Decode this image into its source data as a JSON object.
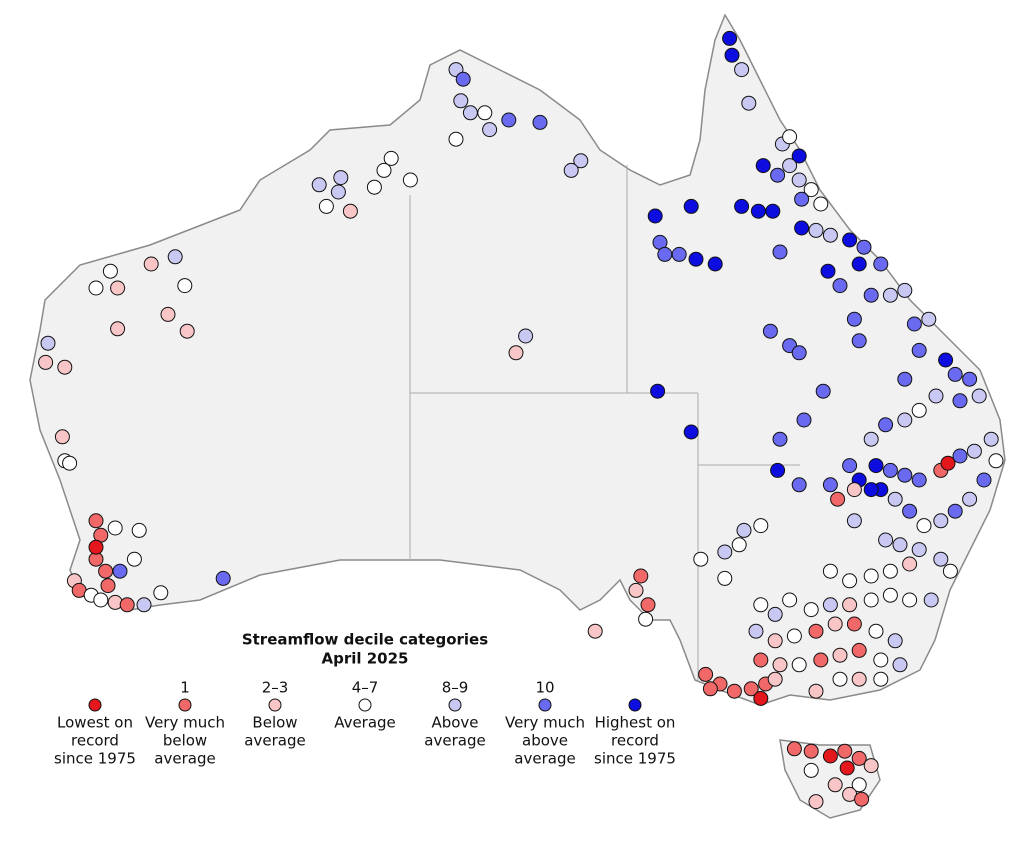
{
  "legend": {
    "title": "Streamflow decile categories",
    "subtitle": "April 2025",
    "items": [
      {
        "lines": [
          "Lowest on",
          "record",
          "since 1975"
        ],
        "color": "#e3171c"
      },
      {
        "decile": "1",
        "lines": [
          "Very much",
          "below",
          "average"
        ],
        "color": "#f06868"
      },
      {
        "decile": "2–3",
        "lines": [
          "Below",
          "average"
        ],
        "color": "#f8c6c6"
      },
      {
        "decile": "4–7",
        "lines": [
          "Average"
        ],
        "color": "#ffffff"
      },
      {
        "decile": "8–9",
        "lines": [
          "Above",
          "average"
        ],
        "color": "#c8c8f2"
      },
      {
        "decile": "10",
        "lines": [
          "Very much",
          "above",
          "average"
        ],
        "color": "#6a6af0"
      },
      {
        "lines": [
          "Highest on",
          "record",
          "since 1975"
        ],
        "color": "#0d0de0"
      }
    ]
  },
  "map": {
    "stations": [
      [
        131.0,
        -12.9,
        4
      ],
      [
        131.3,
        -13.3,
        5
      ],
      [
        131.2,
        -14.2,
        4
      ],
      [
        131.6,
        -14.7,
        4
      ],
      [
        132.2,
        -14.7,
        3
      ],
      [
        132.4,
        -15.4,
        4
      ],
      [
        133.2,
        -15.0,
        5
      ],
      [
        134.5,
        -15.1,
        5
      ],
      [
        131.0,
        -15.8,
        3
      ],
      [
        136.2,
        -16.7,
        4
      ],
      [
        135.8,
        -17.1,
        4
      ],
      [
        128.3,
        -16.6,
        3
      ],
      [
        128.0,
        -17.1,
        3
      ],
      [
        127.6,
        -17.8,
        3
      ],
      [
        129.1,
        -17.5,
        3
      ],
      [
        125.3,
        -17.7,
        4
      ],
      [
        126.1,
        -18.0,
        4
      ],
      [
        126.2,
        -17.4,
        4
      ],
      [
        125.6,
        -18.6,
        3
      ],
      [
        126.6,
        -18.8,
        2
      ],
      [
        116.6,
        -21.3,
        3
      ],
      [
        118.3,
        -21.0,
        2
      ],
      [
        119.3,
        -20.7,
        4
      ],
      [
        119.7,
        -21.9,
        3
      ],
      [
        116.0,
        -22.0,
        3
      ],
      [
        116.9,
        -22.0,
        2
      ],
      [
        119.0,
        -23.1,
        2
      ],
      [
        119.8,
        -23.8,
        2
      ],
      [
        116.9,
        -23.7,
        2
      ],
      [
        114.0,
        -24.3,
        4
      ],
      [
        113.9,
        -25.1,
        2
      ],
      [
        114.7,
        -25.3,
        2
      ],
      [
        114.6,
        -28.2,
        2
      ],
      [
        114.7,
        -29.2,
        3
      ],
      [
        114.9,
        -29.3,
        3
      ],
      [
        133.5,
        -24.7,
        2
      ],
      [
        133.9,
        -24.0,
        4
      ],
      [
        116.0,
        -31.7,
        1
      ],
      [
        116.2,
        -32.3,
        1
      ],
      [
        116.8,
        -32.0,
        3
      ],
      [
        117.8,
        -32.1,
        3
      ],
      [
        116.0,
        -33.3,
        1
      ],
      [
        116.4,
        -33.8,
        1
      ],
      [
        117.0,
        -33.8,
        5
      ],
      [
        117.6,
        -33.3,
        3
      ],
      [
        115.1,
        -34.2,
        2
      ],
      [
        115.3,
        -34.6,
        1
      ],
      [
        115.8,
        -34.8,
        3
      ],
      [
        116.2,
        -35.0,
        3
      ],
      [
        116.8,
        -35.1,
        2
      ],
      [
        117.3,
        -35.2,
        1
      ],
      [
        118.0,
        -35.2,
        4
      ],
      [
        118.7,
        -34.7,
        3
      ],
      [
        116.5,
        -34.4,
        1
      ],
      [
        116.0,
        -32.8,
        0
      ],
      [
        121.3,
        -34.1,
        5
      ],
      [
        138.7,
        -34.0,
        1
      ],
      [
        138.5,
        -34.6,
        2
      ],
      [
        139.0,
        -35.2,
        1
      ],
      [
        138.9,
        -35.8,
        3
      ],
      [
        136.8,
        -36.3,
        2
      ],
      [
        142.4,
        -11.6,
        6
      ],
      [
        142.5,
        -12.3,
        6
      ],
      [
        142.9,
        -12.9,
        4
      ],
      [
        143.2,
        -14.3,
        4
      ],
      [
        144.6,
        -16.0,
        4
      ],
      [
        144.9,
        -15.7,
        3
      ],
      [
        145.3,
        -16.5,
        6
      ],
      [
        143.8,
        -16.9,
        6
      ],
      [
        144.4,
        -17.3,
        5
      ],
      [
        144.9,
        -16.9,
        4
      ],
      [
        145.3,
        -17.5,
        4
      ],
      [
        145.8,
        -17.9,
        3
      ],
      [
        145.4,
        -18.3,
        5
      ],
      [
        146.2,
        -18.5,
        3
      ],
      [
        142.9,
        -18.6,
        6
      ],
      [
        143.6,
        -18.8,
        6
      ],
      [
        144.2,
        -18.8,
        6
      ],
      [
        140.8,
        -18.6,
        6
      ],
      [
        139.3,
        -19.0,
        6
      ],
      [
        139.5,
        -20.1,
        5
      ],
      [
        139.7,
        -20.6,
        5
      ],
      [
        140.3,
        -20.6,
        5
      ],
      [
        141.0,
        -20.8,
        6
      ],
      [
        141.8,
        -21.0,
        6
      ],
      [
        144.5,
        -20.5,
        5
      ],
      [
        145.4,
        -19.5,
        6
      ],
      [
        146.0,
        -19.6,
        4
      ],
      [
        146.6,
        -19.8,
        4
      ],
      [
        147.4,
        -20.0,
        6
      ],
      [
        148.0,
        -20.3,
        5
      ],
      [
        147.8,
        -21.0,
        6
      ],
      [
        148.7,
        -21.0,
        5
      ],
      [
        146.5,
        -21.3,
        6
      ],
      [
        147.0,
        -21.9,
        5
      ],
      [
        148.3,
        -22.3,
        5
      ],
      [
        149.1,
        -22.3,
        4
      ],
      [
        149.7,
        -22.1,
        4
      ],
      [
        144.1,
        -23.8,
        5
      ],
      [
        144.9,
        -24.4,
        5
      ],
      [
        145.3,
        -24.7,
        5
      ],
      [
        147.6,
        -23.3,
        5
      ],
      [
        147.8,
        -24.2,
        5
      ],
      [
        150.1,
        -23.5,
        5
      ],
      [
        150.7,
        -23.3,
        4
      ],
      [
        151.4,
        -25.0,
        6
      ],
      [
        151.8,
        -25.6,
        5
      ],
      [
        152.4,
        -25.8,
        5
      ],
      [
        152.8,
        -26.5,
        4
      ],
      [
        152.0,
        -26.7,
        5
      ],
      [
        151.0,
        -26.5,
        4
      ],
      [
        150.3,
        -27.1,
        3
      ],
      [
        149.7,
        -27.5,
        4
      ],
      [
        148.9,
        -27.7,
        5
      ],
      [
        148.3,
        -28.3,
        4
      ],
      [
        147.4,
        -29.4,
        5
      ],
      [
        147.8,
        -30.0,
        6
      ],
      [
        148.5,
        -29.4,
        6
      ],
      [
        149.1,
        -29.6,
        5
      ],
      [
        149.7,
        -29.8,
        5
      ],
      [
        150.3,
        -30.0,
        5
      ],
      [
        151.2,
        -29.6,
        1
      ],
      [
        151.5,
        -29.3,
        0
      ],
      [
        152.0,
        -29.0,
        5
      ],
      [
        152.6,
        -28.8,
        4
      ],
      [
        153.3,
        -28.3,
        4
      ],
      [
        153.5,
        -29.2,
        3
      ],
      [
        153.0,
        -30.0,
        5
      ],
      [
        152.4,
        -30.8,
        4
      ],
      [
        151.8,
        -31.3,
        5
      ],
      [
        151.2,
        -31.7,
        4
      ],
      [
        150.5,
        -31.9,
        3
      ],
      [
        149.9,
        -31.3,
        5
      ],
      [
        149.3,
        -30.8,
        4
      ],
      [
        148.7,
        -30.4,
        6
      ],
      [
        148.3,
        -30.4,
        6
      ],
      [
        147.6,
        -30.4,
        2
      ],
      [
        146.9,
        -30.8,
        1
      ],
      [
        146.6,
        -30.2,
        5
      ],
      [
        145.3,
        -30.2,
        5
      ],
      [
        146.3,
        -26.3,
        5
      ],
      [
        145.5,
        -27.5,
        5
      ],
      [
        144.5,
        -28.3,
        5
      ],
      [
        144.4,
        -29.6,
        6
      ],
      [
        139.4,
        -26.3,
        6
      ],
      [
        140.8,
        -28.0,
        6
      ],
      [
        149.7,
        -25.8,
        5
      ],
      [
        150.3,
        -24.6,
        5
      ],
      [
        147.6,
        -31.7,
        4
      ],
      [
        148.9,
        -32.5,
        4
      ],
      [
        149.5,
        -32.7,
        4
      ],
      [
        150.3,
        -32.9,
        4
      ],
      [
        151.2,
        -33.3,
        4
      ],
      [
        151.6,
        -33.8,
        3
      ],
      [
        149.9,
        -33.5,
        2
      ],
      [
        149.1,
        -33.8,
        3
      ],
      [
        148.3,
        -34.0,
        3
      ],
      [
        147.4,
        -34.2,
        3
      ],
      [
        146.6,
        -33.8,
        3
      ],
      [
        143.7,
        -31.9,
        3
      ],
      [
        143.0,
        -32.1,
        4
      ],
      [
        142.8,
        -32.7,
        3
      ],
      [
        142.2,
        -33.0,
        4
      ],
      [
        142.2,
        -34.1,
        3
      ],
      [
        141.2,
        -33.3,
        3
      ],
      [
        143.7,
        -35.2,
        3
      ],
      [
        144.3,
        -35.6,
        4
      ],
      [
        144.9,
        -35.0,
        3
      ],
      [
        145.8,
        -35.4,
        3
      ],
      [
        146.6,
        -35.2,
        4
      ],
      [
        147.4,
        -35.2,
        2
      ],
      [
        148.3,
        -35.0,
        3
      ],
      [
        149.1,
        -34.8,
        3
      ],
      [
        149.9,
        -35.0,
        3
      ],
      [
        150.8,
        -35.0,
        4
      ],
      [
        143.5,
        -36.3,
        4
      ],
      [
        144.3,
        -36.7,
        2
      ],
      [
        145.1,
        -36.5,
        3
      ],
      [
        146.0,
        -36.3,
        1
      ],
      [
        146.8,
        -36.0,
        2
      ],
      [
        147.6,
        -36.0,
        1
      ],
      [
        148.5,
        -36.3,
        3
      ],
      [
        149.3,
        -36.7,
        4
      ],
      [
        143.7,
        -37.5,
        1
      ],
      [
        144.5,
        -37.7,
        2
      ],
      [
        145.3,
        -37.7,
        3
      ],
      [
        146.2,
        -37.5,
        1
      ],
      [
        147.0,
        -37.3,
        2
      ],
      [
        147.8,
        -37.1,
        1
      ],
      [
        148.7,
        -37.5,
        3
      ],
      [
        149.5,
        -37.7,
        4
      ],
      [
        147.0,
        -38.3,
        3
      ],
      [
        147.8,
        -38.3,
        2
      ],
      [
        148.7,
        -38.3,
        3
      ],
      [
        146.0,
        -38.8,
        2
      ],
      [
        141.4,
        -38.1,
        1
      ],
      [
        142.0,
        -38.5,
        1
      ],
      [
        142.6,
        -38.8,
        1
      ],
      [
        143.3,
        -38.7,
        1
      ],
      [
        143.9,
        -38.5,
        1
      ],
      [
        143.7,
        -39.1,
        0
      ],
      [
        144.3,
        -38.3,
        2
      ],
      [
        141.6,
        -38.7,
        1
      ],
      [
        145.1,
        -41.2,
        1
      ],
      [
        145.8,
        -41.3,
        1
      ],
      [
        146.6,
        -41.5,
        0
      ],
      [
        147.2,
        -41.3,
        1
      ],
      [
        147.8,
        -41.6,
        1
      ],
      [
        148.3,
        -41.9,
        2
      ],
      [
        147.3,
        -42.0,
        0
      ],
      [
        146.8,
        -42.7,
        2
      ],
      [
        147.8,
        -42.7,
        3
      ],
      [
        147.4,
        -43.1,
        2
      ],
      [
        146.0,
        -43.4,
        2
      ],
      [
        147.9,
        -43.3,
        1
      ],
      [
        145.8,
        -42.1,
        3
      ]
    ]
  }
}
